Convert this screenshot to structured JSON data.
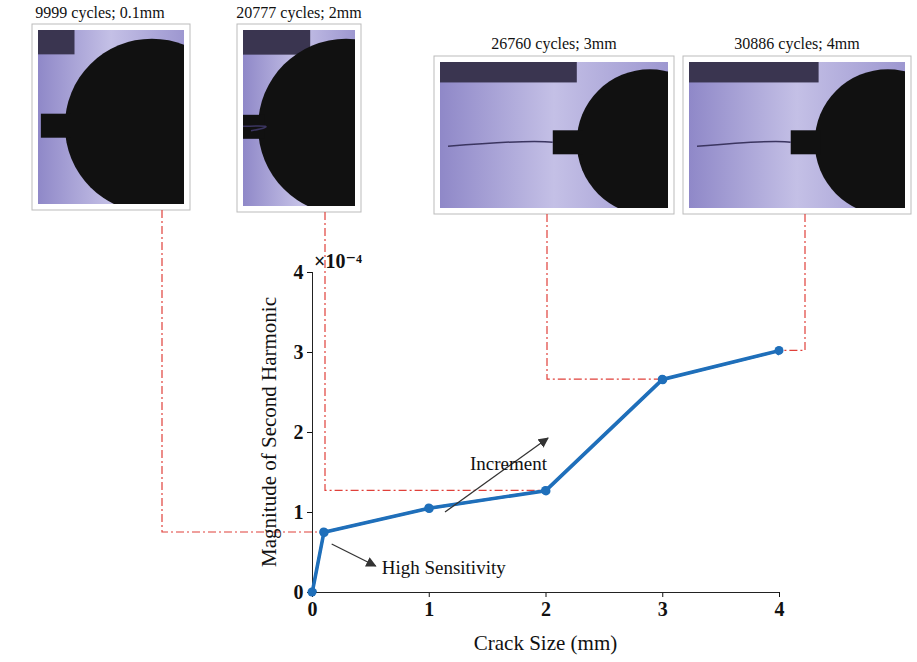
{
  "chart_data": {
    "type": "line",
    "x": [
      0,
      0.1,
      1,
      2,
      3,
      4
    ],
    "values": [
      0,
      0.75,
      1.05,
      1.27,
      2.66,
      3.02
    ],
    "color": "#1f6fba",
    "marker": "circle",
    "xlim": [
      0,
      4
    ],
    "xticks": [
      0,
      1,
      2,
      3,
      4
    ],
    "ylim": [
      0,
      4
    ],
    "yticks": [
      0,
      1,
      2,
      3,
      4
    ],
    "grid": false,
    "xlabel": "Crack Size (mm)",
    "ylabel": "Magnitude of Second Harmonic",
    "y_multiplier": "×10⁻⁴",
    "annotations": [
      "High Sensitivity",
      "Increment"
    ],
    "photo_captions": [
      "9999 cycles; 0.1mm",
      "20777 cycles; 2mm",
      "26760 cycles; 3mm",
      "30886 cycles; 4mm"
    ]
  }
}
